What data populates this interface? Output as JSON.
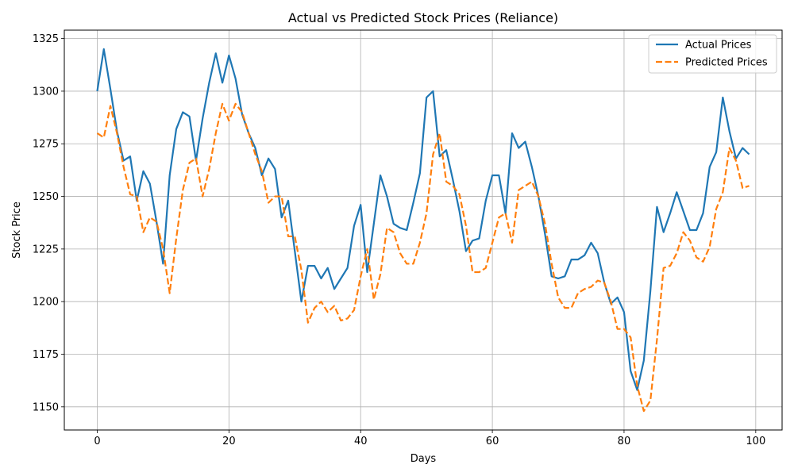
{
  "chart_data": {
    "type": "line",
    "title": "Actual vs Predicted Stock Prices (Reliance)",
    "xlabel": "Days",
    "ylabel": "Stock Price",
    "xlim": [
      -5,
      104
    ],
    "ylim": [
      1139,
      1329
    ],
    "xticks": [
      0,
      20,
      40,
      60,
      80,
      100
    ],
    "yticks": [
      1150,
      1175,
      1200,
      1225,
      1250,
      1275,
      1300,
      1325
    ],
    "grid": true,
    "legend_position": "top-right",
    "series": [
      {
        "name": "Actual Prices",
        "color": "#1f77b4",
        "style": "solid",
        "values": [
          1300,
          1320,
          1301,
          1281,
          1267,
          1269,
          1248,
          1262,
          1256,
          1238,
          1218,
          1260,
          1282,
          1290,
          1288,
          1267,
          1287,
          1304,
          1318,
          1304,
          1317,
          1306,
          1289,
          1280,
          1273,
          1260,
          1268,
          1263,
          1240,
          1248,
          1224,
          1200,
          1217,
          1217,
          1211,
          1216,
          1206,
          1211,
          1216,
          1236,
          1246,
          1214,
          1237,
          1260,
          1250,
          1237,
          1235,
          1234,
          1247,
          1261,
          1297,
          1300,
          1269,
          1272,
          1258,
          1243,
          1224,
          1229,
          1230,
          1248,
          1260,
          1260,
          1242,
          1280,
          1273,
          1276,
          1264,
          1250,
          1232,
          1212,
          1211,
          1212,
          1220,
          1220,
          1222,
          1228,
          1223,
          1209,
          1199,
          1202,
          1195,
          1167,
          1158,
          1172,
          1205,
          1245,
          1233,
          1242,
          1252,
          1243,
          1234,
          1234,
          1242,
          1264,
          1271,
          1297,
          1281,
          1268,
          1273,
          1270
        ]
      },
      {
        "name": "Predicted Prices",
        "color": "#ff7f0e",
        "style": "dashed",
        "values": [
          1280,
          1278,
          1293,
          1280,
          1264,
          1251,
          1250,
          1233,
          1240,
          1238,
          1225,
          1204,
          1230,
          1253,
          1266,
          1268,
          1250,
          1263,
          1280,
          1294,
          1286,
          1294,
          1290,
          1280,
          1270,
          1262,
          1247,
          1250,
          1250,
          1231,
          1231,
          1215,
          1190,
          1197,
          1200,
          1195,
          1198,
          1191,
          1192,
          1196,
          1212,
          1225,
          1201,
          1213,
          1235,
          1233,
          1223,
          1218,
          1218,
          1228,
          1242,
          1270,
          1280,
          1257,
          1255,
          1251,
          1236,
          1214,
          1214,
          1216,
          1228,
          1240,
          1242,
          1228,
          1253,
          1255,
          1257,
          1250,
          1237,
          1218,
          1202,
          1197,
          1197,
          1204,
          1206,
          1207,
          1210,
          1209,
          1200,
          1187,
          1187,
          1183,
          1160,
          1148,
          1153,
          1182,
          1216,
          1217,
          1223,
          1233,
          1229,
          1221,
          1219,
          1226,
          1244,
          1252,
          1273,
          1267,
          1254,
          1255
        ]
      }
    ]
  }
}
